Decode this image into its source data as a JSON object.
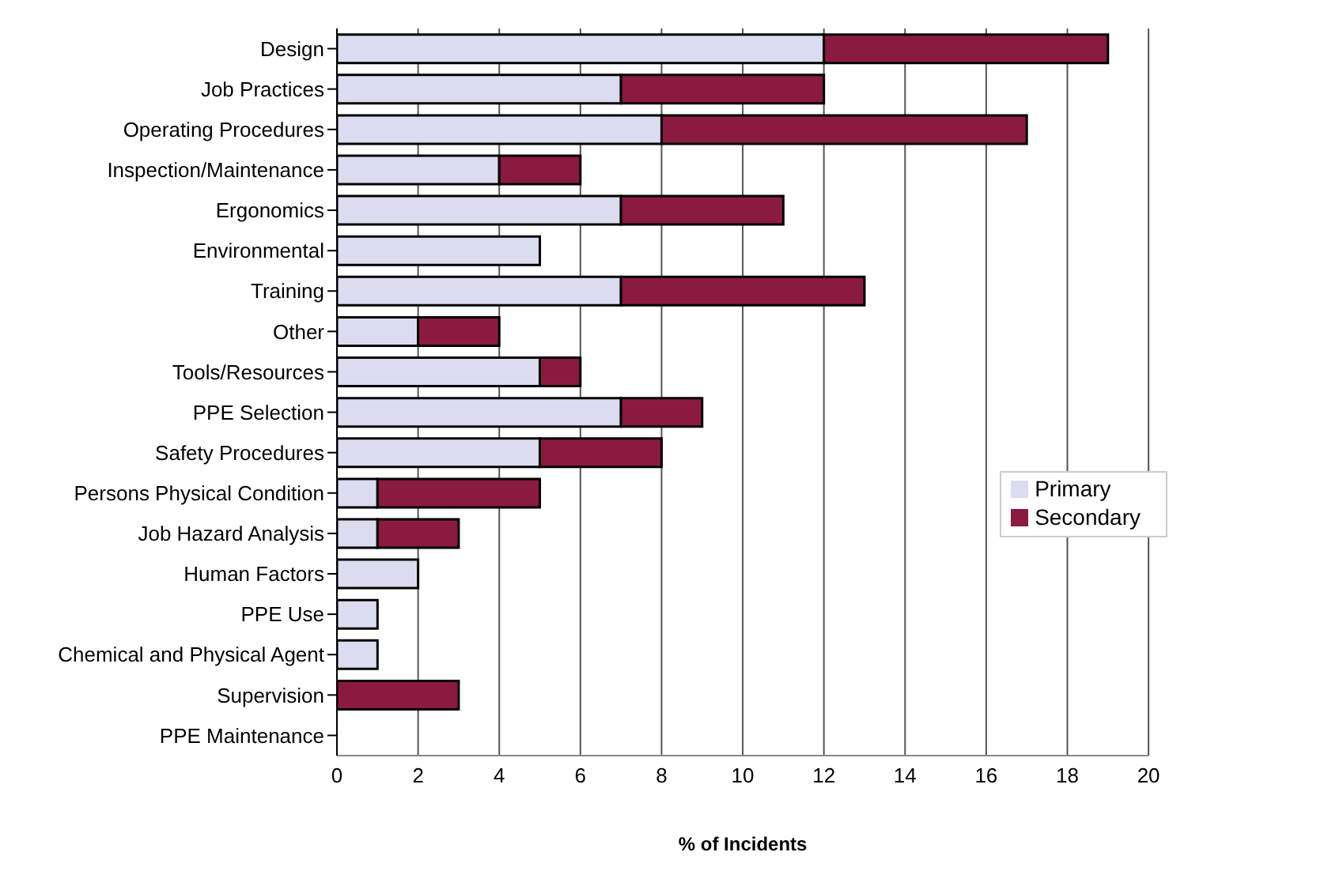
{
  "chart_data": {
    "type": "bar",
    "orientation": "horizontal",
    "stacked": true,
    "xlabel": "% of Incidents",
    "categories": [
      "Design",
      "Job Practices",
      "Operating Procedures",
      "Inspection/Maintenance",
      "Ergonomics",
      "Environmental",
      "Training",
      "Other",
      "Tools/Resources",
      "PPE Selection",
      "Safety Procedures",
      "Persons Physical Condition",
      "Job Hazard Analysis",
      "Human Factors",
      "PPE Use",
      "Chemical and Physical Agent",
      "Supervision",
      "PPE Maintenance"
    ],
    "series": [
      {
        "name": "Primary",
        "color": "#dcdcf0",
        "values": [
          12,
          7,
          8,
          4,
          7,
          5,
          7,
          2,
          5,
          7,
          5,
          1,
          1,
          2,
          1,
          1,
          0,
          0
        ]
      },
      {
        "name": "Secondary",
        "color": "#8b1a40",
        "values": [
          7,
          5,
          9,
          2,
          4,
          0,
          6,
          2,
          1,
          2,
          3,
          4,
          2,
          0,
          0,
          0,
          3,
          0
        ]
      }
    ],
    "xlim": [
      0,
      20
    ],
    "xticks": [
      0,
      2,
      4,
      6,
      8,
      10,
      12,
      14,
      16,
      18,
      20
    ],
    "grid": "x",
    "legend": "right"
  }
}
